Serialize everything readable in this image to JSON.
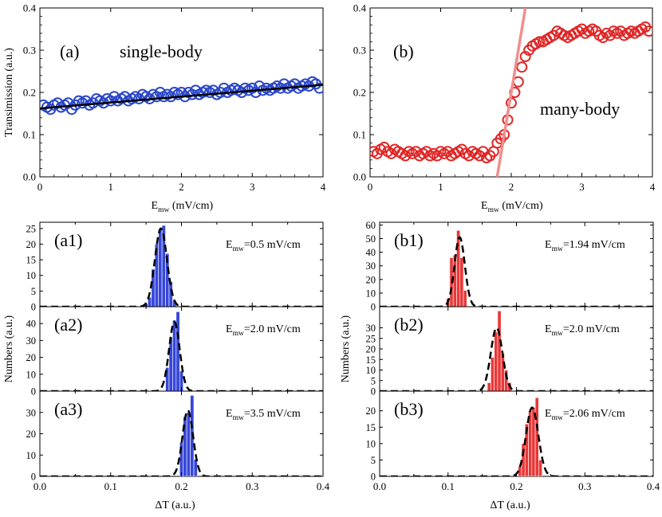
{
  "chart_data": [
    {
      "type": "scatter",
      "panel": "a",
      "label": "(a)",
      "annotation": "single-body",
      "ylabel": "Transimission (a.u.)",
      "xlabel_main": "E",
      "xlabel_sub": "mw",
      "xlabel_unit": " (mV/cm)",
      "xlim": [
        0,
        4
      ],
      "ylim": [
        0,
        0.4
      ],
      "xticks": [
        "0",
        "1",
        "2",
        "3",
        "4"
      ],
      "yticks": [
        "0.0",
        "0.1",
        "0.2",
        "0.3",
        "0.4"
      ],
      "series": [
        {
          "marker": "circle",
          "color": "#2a47c9",
          "x": [
            0.05,
            0.1,
            0.15,
            0.2,
            0.25,
            0.3,
            0.35,
            0.4,
            0.45,
            0.5,
            0.55,
            0.6,
            0.65,
            0.7,
            0.75,
            0.8,
            0.85,
            0.9,
            0.95,
            1.0,
            1.05,
            1.1,
            1.15,
            1.2,
            1.25,
            1.3,
            1.35,
            1.4,
            1.45,
            1.5,
            1.55,
            1.6,
            1.65,
            1.7,
            1.75,
            1.8,
            1.85,
            1.9,
            1.95,
            2.0,
            2.05,
            2.1,
            2.15,
            2.2,
            2.25,
            2.3,
            2.35,
            2.4,
            2.45,
            2.5,
            2.55,
            2.6,
            2.65,
            2.7,
            2.75,
            2.8,
            2.85,
            2.9,
            2.95,
            3.0,
            3.05,
            3.1,
            3.15,
            3.2,
            3.25,
            3.3,
            3.35,
            3.4,
            3.45,
            3.5,
            3.55,
            3.6,
            3.65,
            3.7,
            3.75,
            3.8,
            3.85,
            3.9,
            3.95
          ],
          "y": [
            0.17,
            0.165,
            0.16,
            0.17,
            0.175,
            0.165,
            0.17,
            0.175,
            0.16,
            0.17,
            0.18,
            0.175,
            0.18,
            0.17,
            0.175,
            0.185,
            0.18,
            0.175,
            0.185,
            0.18,
            0.19,
            0.18,
            0.185,
            0.19,
            0.18,
            0.185,
            0.19,
            0.185,
            0.195,
            0.19,
            0.185,
            0.195,
            0.19,
            0.2,
            0.19,
            0.195,
            0.19,
            0.2,
            0.195,
            0.2,
            0.19,
            0.2,
            0.195,
            0.205,
            0.195,
            0.2,
            0.205,
            0.2,
            0.205,
            0.195,
            0.2,
            0.21,
            0.2,
            0.205,
            0.21,
            0.205,
            0.2,
            0.21,
            0.205,
            0.21,
            0.2,
            0.215,
            0.205,
            0.21,
            0.205,
            0.21,
            0.215,
            0.21,
            0.22,
            0.21,
            0.215,
            0.22,
            0.21,
            0.215,
            0.22,
            0.215,
            0.225,
            0.22,
            0.21
          ]
        }
      ],
      "fit_line": {
        "x": [
          0,
          4
        ],
        "y": [
          0.162,
          0.218
        ],
        "color": "#000000"
      }
    },
    {
      "type": "scatter",
      "panel": "b",
      "label": "(b)",
      "annotation": "many-body",
      "xlabel_main": "E",
      "xlabel_sub": "mw",
      "xlabel_unit": " (mV/cm)",
      "xlim": [
        0,
        4
      ],
      "ylim": [
        0,
        0.4
      ],
      "xticks": [
        "0",
        "1",
        "2",
        "3",
        "4"
      ],
      "yticks": [
        "0.0",
        "0.1",
        "0.2",
        "0.3",
        "0.4"
      ],
      "series": [
        {
          "marker": "circle",
          "color": "#e02727",
          "x": [
            0.05,
            0.1,
            0.15,
            0.2,
            0.25,
            0.3,
            0.35,
            0.4,
            0.45,
            0.5,
            0.55,
            0.6,
            0.65,
            0.7,
            0.75,
            0.8,
            0.85,
            0.9,
            0.95,
            1.0,
            1.05,
            1.1,
            1.15,
            1.2,
            1.25,
            1.3,
            1.35,
            1.4,
            1.45,
            1.5,
            1.55,
            1.6,
            1.65,
            1.7,
            1.75,
            1.8,
            1.85,
            1.9,
            1.95,
            2.0,
            2.05,
            2.1,
            2.15,
            2.2,
            2.25,
            2.3,
            2.35,
            2.4,
            2.45,
            2.5,
            2.55,
            2.6,
            2.65,
            2.7,
            2.75,
            2.8,
            2.85,
            2.9,
            2.95,
            3.0,
            3.05,
            3.1,
            3.15,
            3.2,
            3.25,
            3.3,
            3.35,
            3.4,
            3.45,
            3.5,
            3.55,
            3.6,
            3.65,
            3.7,
            3.75,
            3.8,
            3.85,
            3.9,
            3.95
          ],
          "y": [
            0.06,
            0.055,
            0.065,
            0.07,
            0.06,
            0.055,
            0.065,
            0.06,
            0.055,
            0.05,
            0.06,
            0.055,
            0.06,
            0.05,
            0.055,
            0.06,
            0.05,
            0.055,
            0.05,
            0.06,
            0.055,
            0.06,
            0.05,
            0.055,
            0.06,
            0.065,
            0.055,
            0.05,
            0.06,
            0.055,
            0.05,
            0.06,
            0.045,
            0.05,
            0.06,
            0.08,
            0.09,
            0.1,
            0.135,
            0.175,
            0.2,
            0.225,
            0.26,
            0.285,
            0.3,
            0.31,
            0.315,
            0.32,
            0.32,
            0.325,
            0.33,
            0.335,
            0.345,
            0.34,
            0.335,
            0.33,
            0.335,
            0.34,
            0.345,
            0.35,
            0.34,
            0.345,
            0.35,
            0.345,
            0.335,
            0.33,
            0.34,
            0.335,
            0.345,
            0.34,
            0.345,
            0.335,
            0.34,
            0.345,
            0.34,
            0.345,
            0.35,
            0.355,
            0.345
          ]
        }
      ],
      "fit_line": {
        "x": [
          1.8,
          2.2
        ],
        "y": [
          0.0,
          0.4
        ],
        "color": "#f08f8f"
      }
    },
    {
      "type": "bar",
      "panel": "a1",
      "label": "(a1)",
      "annotation_main": "E",
      "annotation_sub": "mw",
      "annotation_rest": "=0.5 mV/cm",
      "ylim": [
        0,
        27
      ],
      "yticks": [
        0,
        5,
        10,
        15,
        20,
        25
      ],
      "xlim": [
        0,
        0.4
      ],
      "bar_width": 0.005,
      "color": "#3647d8",
      "x": [
        0.15,
        0.155,
        0.16,
        0.165,
        0.17,
        0.175,
        0.18,
        0.185,
        0.19
      ],
      "values": [
        1,
        3,
        12,
        20,
        25,
        26,
        17,
        8,
        2
      ],
      "fit": {
        "mean": 0.171,
        "sigma": 0.0085,
        "amp": 25
      }
    },
    {
      "type": "bar",
      "panel": "a2",
      "label": "(a2)",
      "annotation_main": "E",
      "annotation_sub": "mw",
      "annotation_rest": "=2.0 mV/cm",
      "ylim": [
        0,
        50
      ],
      "yticks": [
        0,
        10,
        20,
        30,
        40
      ],
      "xlim": [
        0,
        0.4
      ],
      "bar_width": 0.005,
      "color": "#3647d8",
      "x": [
        0.18,
        0.185,
        0.19,
        0.195,
        0.2
      ],
      "values": [
        14,
        32,
        42,
        47,
        12
      ],
      "fit": {
        "mean": 0.19,
        "sigma": 0.0075,
        "amp": 41
      }
    },
    {
      "type": "bar",
      "panel": "a3",
      "label": "(a3)",
      "annotation_main": "E",
      "annotation_sub": "mw",
      "annotation_rest": "=3.5 mV/cm",
      "ylim": [
        0,
        40
      ],
      "yticks": [
        0,
        10,
        20,
        30
      ],
      "xlim": [
        0,
        0.4
      ],
      "xticks": [
        "0.0",
        "0.1",
        "0.2",
        "0.3",
        "0.4"
      ],
      "xlabel": "ΔT (a.u.)",
      "bar_width": 0.005,
      "color": "#3647d8",
      "x": [
        0.2,
        0.205,
        0.21,
        0.215,
        0.22
      ],
      "values": [
        16,
        28,
        30,
        38,
        8
      ],
      "fit": {
        "mean": 0.209,
        "sigma": 0.0075,
        "amp": 31
      }
    },
    {
      "type": "bar",
      "panel": "b1",
      "label": "(b1)",
      "annotation_main": "E",
      "annotation_sub": "mw",
      "annotation_rest": "=1.94 mV/cm",
      "ylim": [
        0,
        62
      ],
      "yticks": [
        0,
        10,
        20,
        30,
        40,
        50,
        60
      ],
      "xlim": [
        0,
        0.4
      ],
      "bar_width": 0.005,
      "color": "#e83838",
      "x": [
        0.1,
        0.105,
        0.11,
        0.115,
        0.12,
        0.125
      ],
      "values": [
        6,
        36,
        38,
        56,
        36,
        12
      ],
      "fit": {
        "mean": 0.117,
        "sigma": 0.0075,
        "amp": 51
      }
    },
    {
      "type": "bar",
      "panel": "b2",
      "label": "(b2)",
      "annotation_main": "E",
      "annotation_sub": "mw",
      "annotation_rest": "=2.0 mV/cm",
      "ylim": [
        0,
        40
      ],
      "yticks": [
        0,
        5,
        10,
        15,
        20,
        25,
        30
      ],
      "xlim": [
        0,
        0.4
      ],
      "bar_width": 0.005,
      "color": "#e83838",
      "x": [
        0.16,
        0.165,
        0.17,
        0.175,
        0.18,
        0.185,
        0.19
      ],
      "values": [
        4,
        16,
        28,
        38,
        18,
        10,
        4
      ],
      "fit": {
        "mean": 0.171,
        "sigma": 0.0085,
        "amp": 30
      }
    },
    {
      "type": "bar",
      "panel": "b3",
      "label": "(b3)",
      "annotation_main": "E",
      "annotation_sub": "mw",
      "annotation_rest": "=2.06 mV/cm",
      "ylim": [
        0,
        26
      ],
      "yticks": [
        0,
        5,
        10,
        15,
        20
      ],
      "xlim": [
        0,
        0.4
      ],
      "xticks": [
        "0.0",
        "0.1",
        "0.2",
        "0.3",
        "0.4"
      ],
      "xlabel": "ΔT (a.u.)",
      "bar_width": 0.005,
      "color": "#e83838",
      "x": [
        0.205,
        0.21,
        0.215,
        0.22,
        0.225,
        0.23,
        0.235
      ],
      "values": [
        3,
        10,
        16,
        20,
        21,
        24,
        5
      ],
      "fit": {
        "mean": 0.223,
        "sigma": 0.009,
        "amp": 21
      }
    }
  ],
  "hist_ylabel": "Numbers (a.u.)"
}
